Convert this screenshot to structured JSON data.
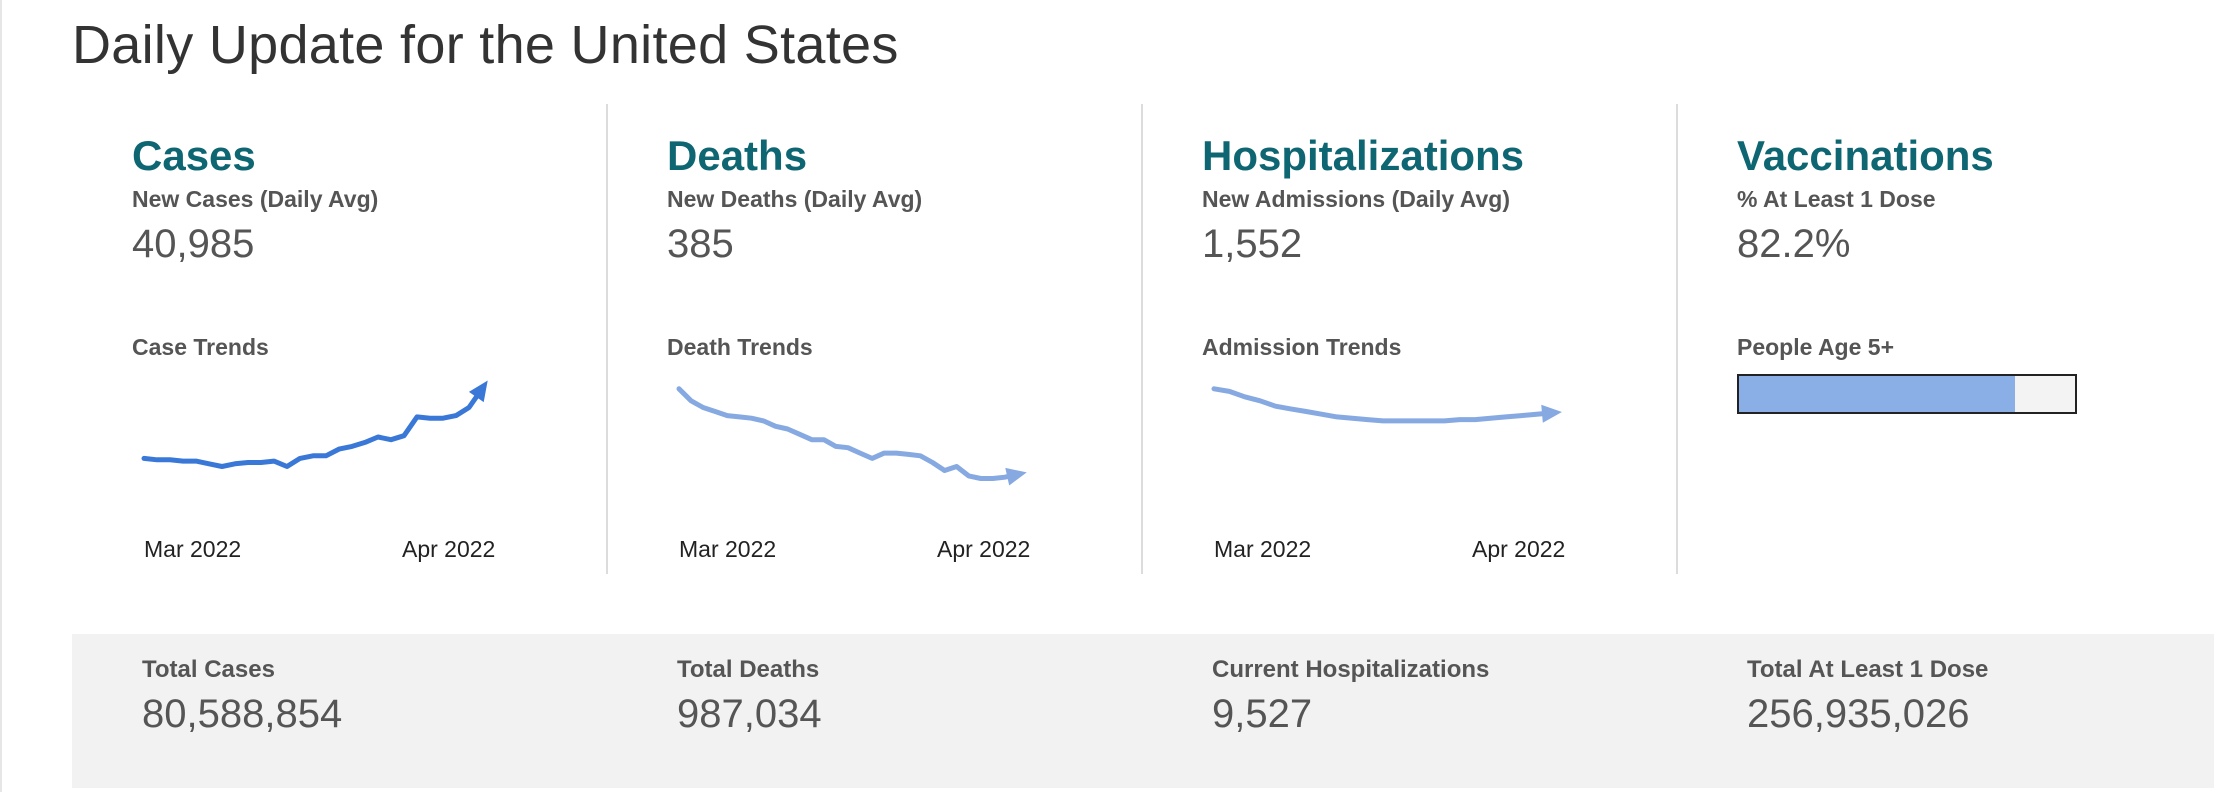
{
  "page": {
    "title": "Daily Update for the United States"
  },
  "colors": {
    "title_accent": "#0e6672",
    "cases_line": "#3a78d8",
    "trend_line": "#86a9e2",
    "progress_fill": "#8aaee6"
  },
  "panels": {
    "cases": {
      "title": "Cases",
      "metric_label": "New Cases (Daily Avg)",
      "metric_value": "40,985",
      "trend_label": "Case Trends",
      "x_ticks": [
        "Mar 2022",
        "Apr 2022"
      ]
    },
    "deaths": {
      "title": "Deaths",
      "metric_label": "New Deaths (Daily Avg)",
      "metric_value": "385",
      "trend_label": "Death Trends",
      "x_ticks": [
        "Mar 2022",
        "Apr 2022"
      ]
    },
    "hospitalizations": {
      "title": "Hospitalizations",
      "metric_label": "New Admissions (Daily Avg)",
      "metric_value": "1,552",
      "trend_label": "Admission Trends",
      "x_ticks": [
        "Mar 2022",
        "Apr 2022"
      ]
    },
    "vaccinations": {
      "title": "Vaccinations",
      "metric_label": "% At Least 1 Dose",
      "metric_value": "82.2%",
      "progress_label": "People Age 5+",
      "progress_fraction": 0.822
    }
  },
  "totals": {
    "cases": {
      "label": "Total Cases",
      "value": "80,588,854"
    },
    "deaths": {
      "label": "Total Deaths",
      "value": "987,034"
    },
    "hospitalizations": {
      "label": "Current Hospitalizations",
      "value": "9,527"
    },
    "vaccinations": {
      "label": "Total At Least 1 Dose",
      "value": "256,935,026"
    }
  },
  "chart_data": [
    {
      "type": "line",
      "name": "cases-trend",
      "x_ticks": [
        "Mar 2022",
        "Apr 2022"
      ],
      "y": [
        0.34,
        0.33,
        0.33,
        0.32,
        0.32,
        0.3,
        0.28,
        0.3,
        0.31,
        0.31,
        0.32,
        0.28,
        0.34,
        0.36,
        0.36,
        0.41,
        0.43,
        0.46,
        0.5,
        0.48,
        0.51,
        0.65,
        0.64,
        0.64,
        0.66,
        0.72,
        0.86
      ]
    },
    {
      "type": "line",
      "name": "deaths-trend",
      "x_ticks": [
        "Mar 2022",
        "Apr 2022"
      ],
      "y": [
        0.86,
        0.77,
        0.72,
        0.69,
        0.66,
        0.65,
        0.64,
        0.62,
        0.58,
        0.56,
        0.52,
        0.48,
        0.48,
        0.43,
        0.42,
        0.38,
        0.34,
        0.38,
        0.38,
        0.37,
        0.36,
        0.31,
        0.25,
        0.28,
        0.21,
        0.19,
        0.19,
        0.2,
        0.22
      ]
    },
    {
      "type": "line",
      "name": "admissions-trend",
      "x_ticks": [
        "Mar 2022",
        "Apr 2022"
      ],
      "y": [
        0.86,
        0.84,
        0.8,
        0.77,
        0.73,
        0.71,
        0.69,
        0.67,
        0.65,
        0.64,
        0.63,
        0.62,
        0.62,
        0.62,
        0.62,
        0.62,
        0.63,
        0.63,
        0.64,
        0.65,
        0.66,
        0.67,
        0.68
      ]
    }
  ]
}
